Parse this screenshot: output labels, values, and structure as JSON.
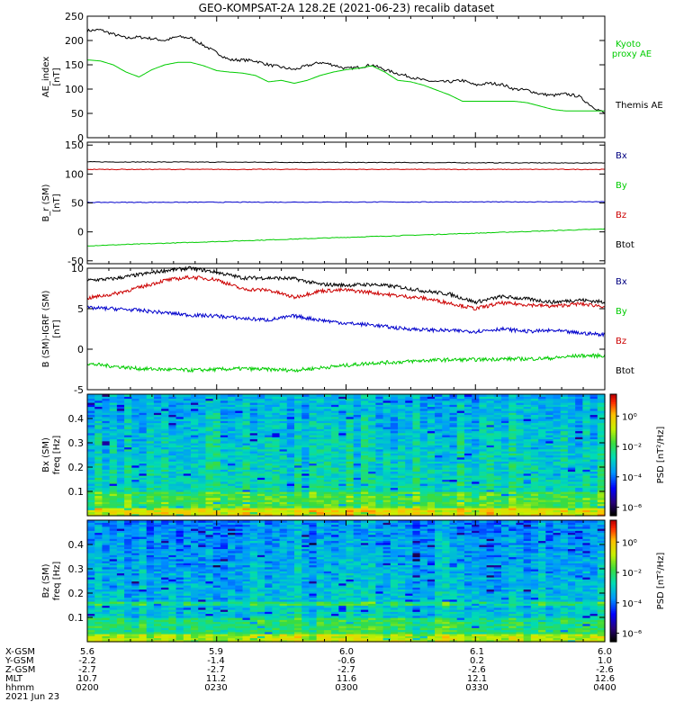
{
  "title": "GEO-KOMPSAT-2A 128.2E (2021-06-23) recalib dataset",
  "chart_data": [
    {
      "type": "line",
      "ylabel": [
        "AE_index",
        "[nT]"
      ],
      "ylim": [
        0,
        250
      ],
      "yticks": [
        "0",
        "50",
        "100",
        "150",
        "200",
        "250"
      ],
      "x_hours": [
        2.0,
        2.05,
        2.1,
        2.15,
        2.2,
        2.25,
        2.3,
        2.35,
        2.4,
        2.45,
        2.5,
        2.55,
        2.6,
        2.65,
        2.7,
        2.75,
        2.8,
        2.85,
        2.9,
        2.95,
        3.0,
        3.05,
        3.1,
        3.15,
        3.2,
        3.25,
        3.3,
        3.35,
        3.4,
        3.45,
        3.5,
        3.55,
        3.6,
        3.65,
        3.7,
        3.75,
        3.8,
        3.85,
        3.9,
        3.95,
        4.0
      ],
      "series": [
        {
          "name": "Themis AE",
          "color": "#000000",
          "values": [
            220,
            222,
            213,
            205,
            207,
            204,
            200,
            208,
            205,
            190,
            175,
            160,
            160,
            158,
            150,
            145,
            140,
            148,
            155,
            150,
            142,
            145,
            150,
            140,
            132,
            125,
            118,
            115,
            115,
            118,
            108,
            112,
            110,
            100,
            98,
            90,
            87,
            90,
            85,
            65,
            50
          ]
        },
        {
          "name": "Kyoto proxy AE",
          "color": "#00cc00",
          "values": [
            160,
            158,
            150,
            135,
            125,
            140,
            150,
            155,
            155,
            148,
            138,
            135,
            133,
            128,
            115,
            118,
            112,
            118,
            128,
            135,
            140,
            143,
            148,
            135,
            118,
            115,
            108,
            98,
            88,
            75,
            75,
            75,
            75,
            75,
            72,
            65,
            58,
            55,
            55,
            55,
            55
          ]
        }
      ],
      "legend": [
        "Kyoto",
        "proxy AE",
        "Themis AE"
      ]
    },
    {
      "type": "line",
      "ylabel": [
        "B_r (SM)",
        "[nT]"
      ],
      "ylim": [
        -55,
        155
      ],
      "yticks": [
        "-50",
        "0",
        "50",
        "100",
        "150"
      ],
      "series": [
        {
          "name": "Bx",
          "color": "#000000",
          "start": 121,
          "end": 119
        },
        {
          "name": "By",
          "color": "#00cc00",
          "start": -24,
          "end": 5
        },
        {
          "name": "Bz",
          "color": "#cc0000",
          "start": 108,
          "end": 108
        },
        {
          "name": "Btot",
          "color": "#0000cc",
          "start": 51,
          "end": 52
        }
      ],
      "legend": [
        "Bx",
        "By",
        "Bz",
        "Btot"
      ]
    },
    {
      "type": "line",
      "ylabel": [
        "B (SM)-IGRF (SM)",
        "[nT]"
      ],
      "ylim": [
        -5,
        10
      ],
      "yticks": [
        "-5",
        "0",
        "5",
        "10"
      ],
      "x_hours": [
        2.0,
        2.1,
        2.2,
        2.3,
        2.4,
        2.5,
        2.6,
        2.7,
        2.8,
        2.9,
        3.0,
        3.1,
        3.2,
        3.3,
        3.4,
        3.5,
        3.6,
        3.7,
        3.8,
        3.9,
        4.0
      ],
      "series": [
        {
          "name": "Bx",
          "color": "#000000",
          "values": [
            8.5,
            8.7,
            9.2,
            9.7,
            10.0,
            9.5,
            8.8,
            8.8,
            8.7,
            8.0,
            7.9,
            8.0,
            7.7,
            7.2,
            6.8,
            5.8,
            6.5,
            6.2,
            5.8,
            6.1,
            5.8
          ]
        },
        {
          "name": "By",
          "color": "#00cc00",
          "values": [
            -1.8,
            -2.1,
            -2.4,
            -2.5,
            -2.6,
            -2.5,
            -2.4,
            -2.5,
            -2.6,
            -2.3,
            -2.0,
            -1.7,
            -1.6,
            -1.4,
            -1.3,
            -1.3,
            -1.2,
            -1.2,
            -1.1,
            -0.8,
            -0.8
          ]
        },
        {
          "name": "Bz",
          "color": "#cc0000",
          "values": [
            6.3,
            6.8,
            7.6,
            8.5,
            8.9,
            8.6,
            7.4,
            7.3,
            6.4,
            7.2,
            7.3,
            7.0,
            6.6,
            6.3,
            5.7,
            5.0,
            5.7,
            5.5,
            5.3,
            5.6,
            5.3
          ]
        },
        {
          "name": "Btot",
          "color": "#0000cc",
          "values": [
            5.1,
            5.0,
            4.8,
            4.5,
            4.2,
            4.1,
            3.8,
            3.6,
            4.1,
            3.6,
            3.2,
            3.0,
            2.6,
            2.4,
            2.3,
            2.2,
            2.5,
            2.2,
            2.3,
            2.0,
            1.8
          ]
        }
      ],
      "legend": [
        "Bx",
        "By",
        "Bz",
        "Btot"
      ]
    },
    {
      "type": "heatmap",
      "ylabel": [
        "Bx (SM)",
        "freq [Hz]"
      ],
      "ylim": [
        0,
        0.5
      ],
      "yticks": [
        "0.1",
        "0.2",
        "0.3",
        "0.4"
      ],
      "colorbar": {
        "label": "PSD [nT²/Hz]",
        "ticks": [
          "10⁰",
          "10⁻²",
          "10⁻⁴",
          "10⁻⁶"
        ]
      }
    },
    {
      "type": "heatmap",
      "ylabel": [
        "Bz (SM)",
        "freq [Hz]"
      ],
      "ylim": [
        0,
        0.5
      ],
      "yticks": [
        "0.1",
        "0.2",
        "0.3",
        "0.4"
      ],
      "colorbar": {
        "label": "PSD [nT²/Hz]",
        "ticks": [
          "10⁰",
          "10⁻²",
          "10⁻⁴",
          "10⁻⁶"
        ]
      }
    }
  ],
  "x_axis": {
    "row_labels": [
      "X-GSM",
      "Y-GSM",
      "Z-GSM",
      "MLT",
      "hhmm",
      "2021 Jun 23"
    ],
    "columns": [
      {
        "values": [
          "5.6",
          "-2.2",
          "-2.7",
          "10.7",
          "0200"
        ]
      },
      {
        "values": [
          "5.9",
          "-1.4",
          "-2.7",
          "11.2",
          "0230"
        ]
      },
      {
        "values": [
          "6.0",
          "-0.6",
          "-2.7",
          "11.6",
          "0300"
        ]
      },
      {
        "values": [
          "6.1",
          "0.2",
          "-2.6",
          "12.1",
          "0330"
        ]
      },
      {
        "values": [
          "6.0",
          "1.0",
          "-2.6",
          "12.6",
          "0400"
        ]
      }
    ]
  }
}
